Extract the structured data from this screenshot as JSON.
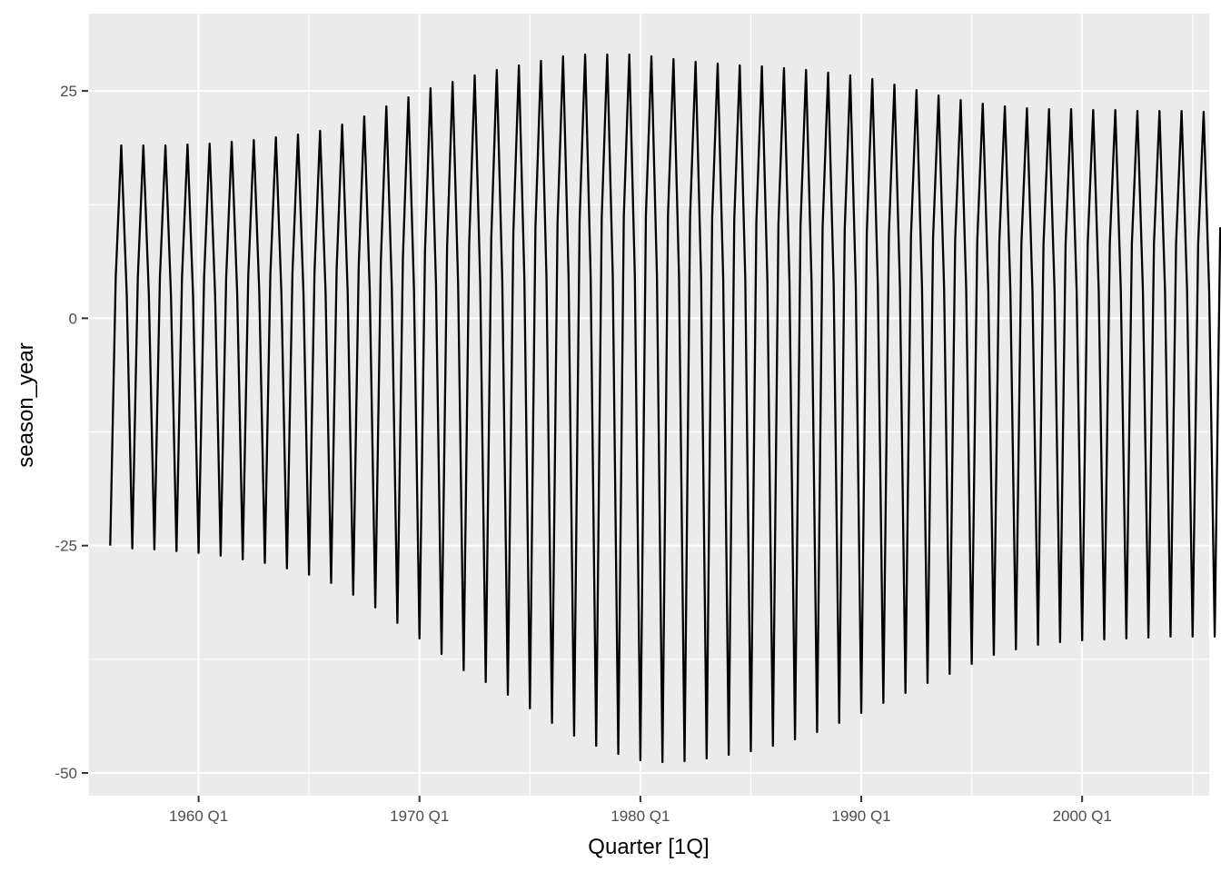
{
  "chart_data": {
    "type": "line",
    "title": "",
    "xlabel": "Quarter [1Q]",
    "ylabel": "season_year",
    "x_start": "1956 Q1",
    "x_end": "2005 Q2",
    "xlim": [
      "1955 Q1",
      "2005 Q4"
    ],
    "ylim": [
      -52.5,
      33.5
    ],
    "x_ticks": [
      "1960 Q1",
      "1970 Q1",
      "1980 Q1",
      "1990 Q1",
      "2000 Q1"
    ],
    "y_ticks": [
      -50,
      -25,
      0,
      25
    ],
    "y_tick_labels": [
      "-50",
      "-25",
      "0",
      "25"
    ],
    "x_tick_labels": [
      "1960 Q1",
      "1970 Q1",
      "1980 Q1",
      "1990 Q1",
      "2000 Q1"
    ],
    "grid": true,
    "colors": {
      "panel": "#ebebeb",
      "grid": "#ffffff",
      "line": "#000000",
      "text": "#4d4d4d"
    },
    "series": [
      {
        "values": [
          -25.0,
          4.5,
          19.0,
          2.5,
          -25.3,
          4.5,
          19.0,
          2.5,
          -25.4,
          4.5,
          19.0,
          2.5,
          -25.6,
          4.5,
          19.1,
          2.5,
          -25.8,
          4.5,
          19.2,
          2.5,
          -26.1,
          4.5,
          19.4,
          2.6,
          -26.5,
          4.7,
          19.6,
          2.7,
          -26.9,
          4.8,
          19.9,
          2.7,
          -27.5,
          5.0,
          20.2,
          2.7,
          -28.2,
          5.2,
          20.6,
          2.8,
          -29.1,
          5.4,
          21.3,
          2.9,
          -30.4,
          5.8,
          22.2,
          3.0,
          -31.8,
          6.2,
          23.3,
          3.2,
          -33.5,
          6.6,
          24.3,
          3.3,
          -35.2,
          7.3,
          25.3,
          3.5,
          -36.9,
          7.8,
          26.0,
          3.7,
          -38.7,
          8.2,
          26.7,
          3.9,
          -40.0,
          8.8,
          27.3,
          4.0,
          -41.4,
          9.4,
          27.8,
          4.2,
          -42.9,
          10.0,
          28.3,
          4.4,
          -44.5,
          10.5,
          28.8,
          4.5,
          -45.9,
          10.8,
          29.0,
          4.6,
          -47.0,
          11.0,
          29.0,
          4.7,
          -47.9,
          11.2,
          29.0,
          4.6,
          -48.6,
          11.3,
          28.8,
          4.6,
          -48.8,
          11.3,
          28.5,
          4.5,
          -48.7,
          11.2,
          28.2,
          4.4,
          -48.4,
          11.0,
          28.0,
          4.3,
          -48.0,
          10.8,
          27.8,
          4.2,
          -47.6,
          10.6,
          27.7,
          4.1,
          -47.0,
          10.4,
          27.5,
          4.0,
          -46.3,
          10.2,
          27.3,
          3.9,
          -45.5,
          10.0,
          27.0,
          3.8,
          -44.5,
          9.7,
          26.7,
          3.7,
          -43.4,
          9.4,
          26.3,
          3.6,
          -42.3,
          9.2,
          25.7,
          3.5,
          -41.2,
          9.0,
          25.1,
          3.4,
          -40.1,
          8.8,
          24.5,
          3.3,
          -39.1,
          8.6,
          24.0,
          3.2,
          -38.0,
          8.5,
          23.6,
          3.1,
          -37.0,
          8.4,
          23.3,
          3.1,
          -36.4,
          8.3,
          23.1,
          3.0,
          -35.9,
          8.2,
          23.0,
          3.0,
          -35.6,
          8.2,
          23.0,
          3.0,
          -35.4,
          8.2,
          22.9,
          3.0,
          -35.3,
          8.2,
          22.9,
          3.0,
          -35.2,
          8.2,
          22.8,
          3.0,
          -35.1,
          8.2,
          22.8,
          3.0,
          -35.0,
          8.2,
          22.8,
          3.0,
          -35.0,
          8.1,
          22.7,
          3.0,
          -35.0,
          10.0
        ]
      }
    ]
  }
}
